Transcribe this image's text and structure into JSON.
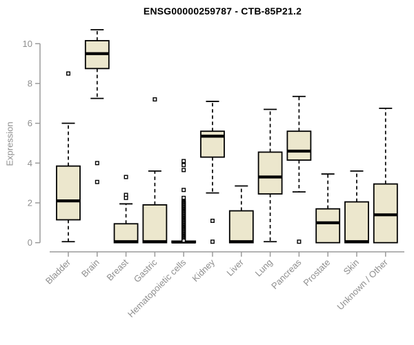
{
  "chart_data": {
    "type": "boxplot",
    "title": "ENSG00000259787 - CTB-85P21.2",
    "xlabel": "",
    "ylabel": "Expression",
    "ylim": [
      0,
      10.8
    ],
    "yticks": [
      0,
      2,
      4,
      6,
      8,
      10
    ],
    "grid": false,
    "legend": "none",
    "categories": [
      "Bladder",
      "Brain",
      "Breast",
      "Gastric",
      "Hematopoietic cells",
      "Kidney",
      "Liver",
      "Lung",
      "Pancreas",
      "Prostate",
      "Skin",
      "Unknown / Other"
    ],
    "series": [
      {
        "name": "Bladder",
        "min": 0.05,
        "q1": 1.15,
        "median": 2.1,
        "q3": 3.85,
        "max": 6.0,
        "outliers": [
          8.5
        ]
      },
      {
        "name": "Brain",
        "min": 7.25,
        "q1": 8.75,
        "median": 9.5,
        "q3": 10.15,
        "max": 10.7,
        "outliers": [
          4.0,
          3.05
        ]
      },
      {
        "name": "Breast",
        "min": 0,
        "q1": 0,
        "median": 0.05,
        "q3": 0.95,
        "max": 1.95,
        "outliers": [
          3.3,
          2.4,
          2.25
        ]
      },
      {
        "name": "Gastric",
        "min": 0,
        "q1": 0,
        "median": 0.05,
        "q3": 1.9,
        "max": 3.6,
        "outliers": [
          7.2
        ]
      },
      {
        "name": "Hematopoietic cells",
        "min": 0,
        "q1": 0,
        "median": 0.03,
        "q3": 0.08,
        "max": 0.1,
        "outliers": [
          4.1,
          3.9,
          3.65,
          2.65,
          2.25,
          2.1,
          2.05,
          2.0,
          1.95,
          1.9,
          1.85,
          1.8,
          1.75,
          1.7,
          1.65,
          1.6,
          1.55,
          1.5,
          1.45,
          1.4,
          1.35,
          1.3,
          1.25,
          1.2,
          1.15,
          1.1,
          1.05,
          1.0,
          0.95,
          0.9,
          0.85,
          0.8,
          0.75,
          0.7,
          0.65,
          0.6,
          0.55,
          0.5,
          0.45,
          0.4,
          0.35,
          0.3,
          0.25,
          0.2,
          0.15,
          0.1
        ]
      },
      {
        "name": "Kidney",
        "min": 2.5,
        "q1": 4.3,
        "median": 5.35,
        "q3": 5.6,
        "max": 7.1,
        "outliers": [
          1.1,
          0.05
        ]
      },
      {
        "name": "Liver",
        "min": 0,
        "q1": 0,
        "median": 0.05,
        "q3": 1.6,
        "max": 2.85,
        "outliers": []
      },
      {
        "name": "Lung",
        "min": 0.05,
        "q1": 2.45,
        "median": 3.3,
        "q3": 4.55,
        "max": 6.7,
        "outliers": []
      },
      {
        "name": "Pancreas",
        "min": 2.55,
        "q1": 4.15,
        "median": 4.6,
        "q3": 5.6,
        "max": 7.35,
        "outliers": [
          0.05
        ]
      },
      {
        "name": "Prostate",
        "min": 0,
        "q1": 0,
        "median": 1.0,
        "q3": 1.7,
        "max": 3.45,
        "outliers": []
      },
      {
        "name": "Skin",
        "min": 0,
        "q1": 0,
        "median": 0.05,
        "q3": 2.05,
        "max": 3.6,
        "outliers": []
      },
      {
        "name": "Unknown / Other",
        "min": 0,
        "q1": 0,
        "median": 1.4,
        "q3": 2.95,
        "max": 6.75,
        "outliers": []
      }
    ],
    "colors": {
      "box_fill": "#ece7cd",
      "box_border": "#000000",
      "median": "#000000",
      "whisker": "#000000",
      "axis": "#9a9a9a",
      "tick_label": "#8e8e8e",
      "title": "#000000",
      "background": "#ffffff"
    }
  }
}
